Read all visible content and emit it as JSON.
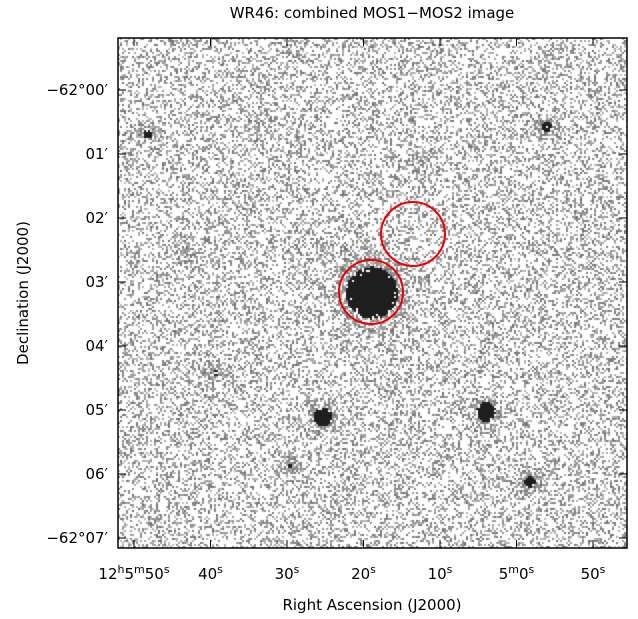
{
  "title": "WR46: combined MOS1−MOS2 image",
  "x_axis": {
    "label": "Right Ascension (J2000)",
    "ticks": [
      [
        "12",
        "h",
        "5",
        "m",
        "50",
        "s"
      ],
      [
        "40",
        "s"
      ],
      [
        "30",
        "s"
      ],
      [
        "20",
        "s"
      ],
      [
        "10",
        "s"
      ],
      [
        "5",
        "m",
        "0",
        "s"
      ],
      [
        "50",
        "s"
      ]
    ]
  },
  "y_axis": {
    "label": "Declination (J2000)",
    "ticks": [
      "−62°00′",
      "01′",
      "02′",
      "03′",
      "04′",
      "05′",
      "06′",
      "−62°07′"
    ]
  }
}
